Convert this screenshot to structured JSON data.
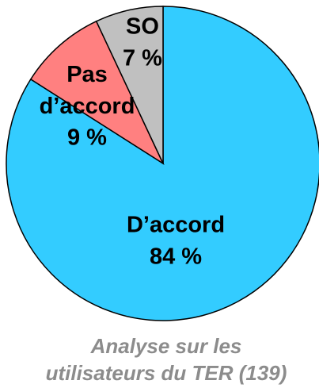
{
  "chart_data": {
    "type": "pie",
    "categories": [
      "D’accord",
      "Pas d’accord",
      "SO"
    ],
    "values": [
      84,
      9,
      7
    ],
    "value_labels": [
      "84 %",
      "9 %",
      "7 %"
    ],
    "colors": [
      "#33ccff",
      "#ff8080",
      "#c0c0c0"
    ],
    "caption": [
      "Analyse sur les",
      "utilisateurs du TER (139)"
    ]
  }
}
